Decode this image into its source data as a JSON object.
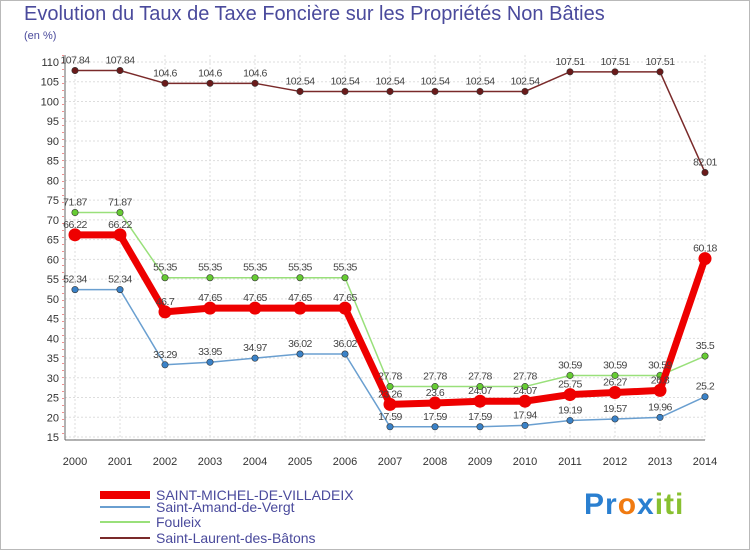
{
  "chart_data": {
    "type": "line",
    "title": "Evolution du Taux de Taxe Foncière sur les Propriétés Non Bâties",
    "ylabel": "(en %)",
    "xlabel": "",
    "categories": [
      "2000",
      "2001",
      "2002",
      "2003",
      "2004",
      "2005",
      "2006",
      "2007",
      "2008",
      "2009",
      "2010",
      "2011",
      "2012",
      "2013",
      "2014"
    ],
    "ylim": [
      15,
      110
    ],
    "yticks": [
      15,
      20,
      25,
      30,
      35,
      40,
      45,
      50,
      55,
      60,
      65,
      70,
      75,
      80,
      85,
      90,
      95,
      100,
      105,
      110
    ],
    "grid": true,
    "series": [
      {
        "name": "Saint-Laurent-des-Bâtons",
        "color": "#7a2a2a",
        "marker": "#6a1a1a",
        "values": [
          107.84,
          107.84,
          104.6,
          104.6,
          104.6,
          102.54,
          102.54,
          102.54,
          102.54,
          102.54,
          102.54,
          107.51,
          107.51,
          107.51,
          82.01
        ],
        "labels": [
          "107.84",
          "107.84",
          "104.6",
          "104.6",
          "104.6",
          "102.54",
          "102.54",
          "102.54",
          "102.54",
          "102.54",
          "102.54",
          "107.51",
          "107.51",
          "107.51",
          "82.01"
        ]
      },
      {
        "name": "Fouleix",
        "color": "#99e07a",
        "marker": "#66cc33",
        "values": [
          71.87,
          71.87,
          55.35,
          55.35,
          55.35,
          55.35,
          55.35,
          27.78,
          27.78,
          27.78,
          27.78,
          30.59,
          30.59,
          30.59,
          35.5
        ],
        "labels": [
          "71.87",
          "71.87",
          "55.35",
          "55.35",
          "55.35",
          "55.35",
          "55.35",
          "27.78",
          "27.78",
          "27.78",
          "27.78",
          "30.59",
          "30.59",
          "30.59",
          "35.5"
        ]
      },
      {
        "name": "Saint-Amand-de-Vergt",
        "color": "#6a9fd0",
        "marker": "#3a82c8",
        "values": [
          52.34,
          52.34,
          33.29,
          33.95,
          34.97,
          36.02,
          36.02,
          17.59,
          17.59,
          17.59,
          17.94,
          19.19,
          19.57,
          19.96,
          25.2
        ],
        "labels": [
          "52.34",
          "52.34",
          "33.29",
          "33.95",
          "34.97",
          "36.02",
          "36.02",
          "17.59",
          "17.59",
          "17.59",
          "17.94",
          "19.19",
          "19.57",
          "19.96",
          "25.2"
        ]
      },
      {
        "name": "SAINT-MICHEL-DE-VILLADEIX",
        "color": "#ee0000",
        "marker": "#ee0000",
        "values": [
          66.22,
          66.22,
          46.7,
          47.65,
          47.65,
          47.65,
          47.65,
          23.26,
          23.6,
          24.07,
          24.07,
          25.75,
          26.27,
          26.8,
          60.18
        ],
        "labels": [
          "66.22",
          "66.22",
          "46.7",
          "47.65",
          "47.65",
          "47.65",
          "47.65",
          "23.26",
          "23.6",
          "24.07",
          "24.07",
          "25.75",
          "26.27",
          "26.8",
          "60.18"
        ]
      }
    ],
    "legend": [
      "SAINT-MICHEL-DE-VILLADEIX",
      "Saint-Amand-de-Vergt",
      "Fouleix",
      "Saint-Laurent-des-Bâtons"
    ],
    "legend_position": "bottom-left"
  },
  "legend_colors": [
    "#ee0000",
    "#6a9fd0",
    "#99e07a",
    "#7a2a2a"
  ],
  "logo": {
    "parts": [
      "Pr",
      "o",
      "x",
      "i",
      "ti"
    ],
    "colors": [
      "#2a7fd0",
      "#f07a10",
      "#2a7fd0",
      "#88c030",
      "#88c030"
    ]
  }
}
